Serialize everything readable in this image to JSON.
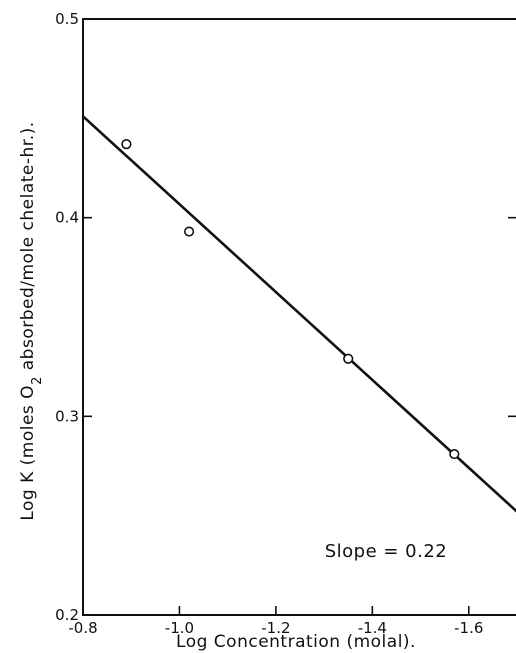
{
  "chart_data": {
    "type": "scatter",
    "xlabel": "Log Concentration (molal).",
    "ylabel_parts": {
      "before": "Log K (moles O",
      "sub": "2",
      "after": " absorbed/mole chelate-hr.)."
    },
    "xlim": [
      -0.8,
      -1.7
    ],
    "ylim": [
      0.2,
      0.5
    ],
    "x_ticks": [
      -0.8,
      -1.0,
      -1.2,
      -1.4,
      -1.6
    ],
    "x_tick_labels": [
      "-0.8",
      "-1.0",
      "-1.2",
      "-1.4",
      "-1.6"
    ],
    "y_ticks": [
      0.2,
      0.3,
      0.4,
      0.5
    ],
    "y_tick_labels": [
      "0.2",
      "0.3",
      "0.4",
      "0.5"
    ],
    "grid": false,
    "points": [
      {
        "x": -0.89,
        "y": 0.437
      },
      {
        "x": -1.02,
        "y": 0.393
      },
      {
        "x": -1.35,
        "y": 0.329
      },
      {
        "x": -1.57,
        "y": 0.281
      }
    ],
    "fit_line": {
      "x": [
        -0.8,
        -1.7
      ],
      "y": [
        0.451,
        0.252
      ]
    },
    "annotation": "Slope = 0.22",
    "line_color": "#111111"
  }
}
